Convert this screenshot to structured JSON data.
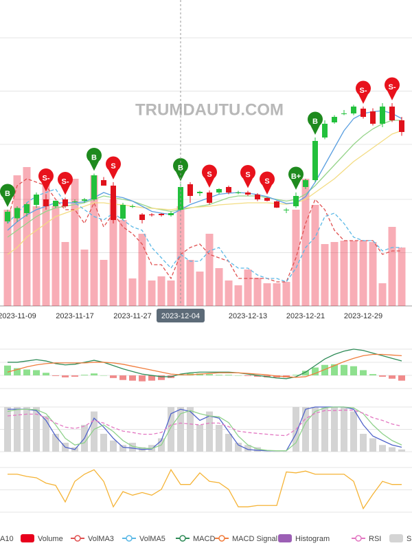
{
  "chart_data": [
    {
      "type": "candlestick",
      "watermark": "TRUMDAUTU.COM",
      "categories": [
        null,
        "2023-11-09",
        null,
        null,
        null,
        null,
        null,
        "2023-11-17",
        null,
        null,
        null,
        null,
        null,
        "2023-11-27",
        null,
        null,
        null,
        null,
        "2023-12-04",
        null,
        null,
        null,
        null,
        null,
        null,
        "2023-12-13",
        null,
        null,
        null,
        null,
        null,
        "2023-12-21",
        null,
        null,
        null,
        null,
        null,
        "2023-12-29",
        null,
        null,
        null,
        null
      ],
      "crosshair_index": 18,
      "up_color": "#22c03c",
      "down_color": "#e0121c",
      "open": [
        24.6,
        25.5,
        27,
        29.4,
        31,
        29,
        31,
        30.4,
        30.6,
        31,
        36.6,
        35,
        25.4,
        29,
        26.6,
        26.6,
        26.8,
        26.4,
        28,
        35.4,
        32.8,
        33,
        33,
        34.6,
        33,
        33,
        32.4,
        31.4,
        30.4,
        28,
        29,
        34.6,
        36.6,
        49,
        53.4,
        56,
        56,
        57.4,
        56.6,
        53,
        58,
        54
      ],
      "high": [
        28,
        29,
        30,
        33,
        32.5,
        30.5,
        31.5,
        31,
        31.4,
        38.5,
        37.5,
        36,
        30,
        29.5,
        27,
        27,
        27,
        27.5,
        35.5,
        36,
        33.5,
        33.6,
        34.2,
        35,
        33.5,
        33.5,
        32.8,
        31.6,
        30.6,
        28.5,
        33,
        37,
        49,
        54,
        55.5,
        57,
        58.5,
        58,
        57.5,
        59,
        59,
        55
      ],
      "low": [
        24,
        24.5,
        26,
        28.5,
        28,
        28.5,
        28.5,
        30,
        30,
        30.5,
        35,
        24,
        25,
        28.5,
        24,
        26,
        26,
        26,
        27.5,
        30,
        32,
        29.5,
        32.5,
        32.5,
        32.5,
        32,
        30.5,
        30.4,
        28.5,
        27,
        28.5,
        34,
        36,
        48.5,
        53,
        55.5,
        55.5,
        54.5,
        52.5,
        52,
        53.5,
        49.5
      ],
      "close": [
        27.4,
        28.5,
        29.6,
        32.4,
        29,
        30.6,
        29,
        30.4,
        31,
        38,
        35,
        25,
        29.4,
        29,
        25,
        26.4,
        26.4,
        27,
        34.6,
        32,
        33.2,
        30,
        34,
        33,
        33,
        32.4,
        31,
        30.6,
        28.6,
        28,
        32,
        36.6,
        48,
        53,
        55,
        56,
        58,
        55,
        53,
        58,
        54,
        50.6
      ],
      "signals": [
        {
          "label": "B",
          "color": "#1e8a1e"
        },
        null,
        null,
        null,
        {
          "label": "S-",
          "color": "#e8121c"
        },
        null,
        {
          "label": "S-",
          "color": "#e8121c"
        },
        null,
        null,
        {
          "label": "B",
          "color": "#1e8a1e"
        },
        null,
        {
          "label": "S",
          "color": "#e8121c"
        },
        null,
        null,
        null,
        null,
        null,
        null,
        {
          "label": "B",
          "color": "#1e8a1e"
        },
        null,
        null,
        {
          "label": "S",
          "color": "#e8121c"
        },
        null,
        null,
        null,
        {
          "label": "S",
          "color": "#e8121c"
        },
        null,
        {
          "label": "S",
          "color": "#e8121c"
        },
        null,
        null,
        {
          "label": "B+",
          "color": "#1e8a1e"
        },
        null,
        {
          "label": "B",
          "color": "#1e8a1e"
        },
        null,
        null,
        null,
        null,
        {
          "label": "S-",
          "color": "#e8121c"
        },
        null,
        null,
        {
          "label": "S-",
          "color": "#e8121c"
        },
        null
      ],
      "series": [
        {
          "name": "A10",
          "color": "#96d48a",
          "values": [
            20,
            22,
            24,
            26,
            27.5,
            28.5,
            29,
            29.5,
            30,
            31,
            32,
            31.5,
            31,
            30.5,
            29.5,
            28.5,
            28,
            27.5,
            28,
            28.5,
            29,
            29.5,
            30.5,
            31.5,
            32,
            32,
            32,
            31.5,
            31,
            30.5,
            31,
            32.5,
            35,
            38,
            41,
            44,
            47,
            49.5,
            51.5,
            53,
            54,
            54
          ]
        },
        {
          "color": "#f3dc82",
          "values": [
            15,
            17,
            20,
            22,
            24,
            26,
            27,
            28,
            29,
            30,
            30,
            29.6,
            29.4,
            29,
            28.6,
            28.4,
            28.2,
            28,
            28.4,
            28.6,
            28.8,
            29,
            29.4,
            29.6,
            29.8,
            30,
            30,
            30,
            29.8,
            29.6,
            30,
            31,
            33,
            35,
            37,
            39.5,
            42,
            44,
            46,
            48,
            50,
            51
          ]
        },
        {
          "color": "#5a9fe0",
          "values": [
            22,
            24.5,
            26.5,
            28,
            29,
            30,
            30,
            30,
            30.3,
            31.5,
            33,
            32,
            31.5,
            30.5,
            29,
            27.5,
            27,
            26.6,
            28,
            29.5,
            30.5,
            31.5,
            32.5,
            32.8,
            33,
            32.8,
            32.4,
            31.8,
            30.8,
            29.8,
            30,
            31.8,
            36,
            41,
            46,
            51,
            54.5,
            56,
            56.5,
            56.8,
            56,
            54.5
          ]
        },
        {
          "name": "Volume",
          "type": "bar",
          "axis": "y2",
          "color": "#e8001c",
          "values": [
            28,
            38,
            40.4,
            29,
            35.4,
            29,
            18.6,
            37,
            16.4,
            38,
            13.4,
            31,
            25,
            8,
            21,
            7.4,
            8.6,
            7.4,
            29,
            13.4,
            10,
            21,
            11,
            7.4,
            6,
            10.6,
            8.2,
            6.6,
            6.6,
            7,
            28,
            37,
            29.4,
            18,
            18.6,
            19,
            19,
            19,
            18.6,
            6.6,
            23,
            17
          ]
        },
        {
          "name": "VolMA3",
          "axis": "y2",
          "dashed": true,
          "color": "#e05050",
          "values": [
            25,
            35,
            37,
            36,
            35,
            31,
            28,
            28,
            24,
            30,
            23,
            27,
            23,
            21,
            18,
            12,
            12,
            8,
            15,
            17,
            18,
            15,
            14,
            13,
            8,
            8,
            8,
            8,
            7,
            7,
            14,
            24,
            31,
            28,
            22,
            19,
            19,
            19,
            19,
            15,
            16,
            16
          ]
        },
        {
          "name": "VolMA5",
          "axis": "y2",
          "dashed": true,
          "color": "#5ab8e6",
          "values": [
            24,
            27,
            30,
            32,
            33,
            34,
            30,
            30,
            28,
            26,
            25,
            27,
            25,
            23,
            22,
            17,
            14,
            11,
            15,
            13,
            13,
            16,
            17,
            13,
            11,
            11,
            9,
            8,
            8,
            7,
            11,
            17,
            20,
            26,
            27,
            24,
            20,
            19,
            19,
            16,
            17,
            17
          ]
        }
      ],
      "ylim": [
        0,
        83
      ],
      "yticks": [
        0,
        15.5,
        31,
        47,
        62.5,
        78
      ],
      "y2lim": [
        0,
        83
      ],
      "grid": true
    },
    {
      "type": "macd",
      "series": [
        {
          "name": "MACD",
          "color": "#2e8b57",
          "values": [
            2,
            2,
            2.2,
            2.4,
            2.2,
            1.8,
            1.6,
            1.7,
            2,
            2.3,
            2,
            1.5,
            1,
            0.6,
            0.2,
            0,
            -0.2,
            -0.2,
            0.2,
            0.4,
            0.5,
            0.5,
            0.5,
            0.5,
            0.4,
            0.2,
            0,
            -0.2,
            -0.4,
            -0.5,
            -0.2,
            0.5,
            1.5,
            2.5,
            3.2,
            3.7,
            4,
            3.8,
            3.4,
            3,
            2.6,
            2.2
          ]
        },
        {
          "name": "MACD Signal",
          "color": "#f07c3c",
          "values": [
            0.5,
            0.9,
            1.3,
            1.6,
            1.8,
            1.9,
            1.9,
            1.9,
            1.9,
            2,
            2,
            1.9,
            1.7,
            1.4,
            1.1,
            0.8,
            0.5,
            0.2,
            0.1,
            0.1,
            0.2,
            0.3,
            0.4,
            0.4,
            0.4,
            0.3,
            0.2,
            0.1,
            -0.1,
            -0.2,
            -0.3,
            -0.2,
            0.3,
            0.9,
            1.5,
            2.1,
            2.6,
            3,
            3.2,
            3.2,
            3.1,
            3
          ]
        },
        {
          "name": "Histogram",
          "type": "bar",
          "color": "#9c5fb5",
          "up_color": "#8ee08e",
          "down_color": "#f08a8a",
          "values": [
            1.5,
            1.1,
            0.9,
            0.8,
            0.4,
            -0.1,
            -0.3,
            -0.2,
            0.1,
            0.3,
            0,
            -0.4,
            -0.7,
            -0.8,
            -0.9,
            -0.8,
            -0.7,
            -0.4,
            0.1,
            0.3,
            0.3,
            0.2,
            0.1,
            0.1,
            0,
            -0.1,
            -0.2,
            -0.3,
            -0.3,
            -0.3,
            0.1,
            0.7,
            1.2,
            1.6,
            1.7,
            1.6,
            1.4,
            0.8,
            0.2,
            -0.2,
            -0.5,
            -0.8
          ]
        }
      ],
      "ylim": [
        -2.3,
        4.3
      ],
      "yticks": [
        -2,
        0,
        2,
        4
      ],
      "grid": true
    },
    {
      "type": "oscillator",
      "series": [
        {
          "name": "S",
          "type": "bar",
          "color": "#d4d4d4",
          "values": [
            100,
            100,
            100,
            100,
            80,
            40,
            20,
            10,
            60,
            90,
            40,
            25,
            15,
            20,
            10,
            15,
            30,
            100,
            100,
            100,
            60,
            90,
            60,
            40,
            20,
            15,
            10,
            0,
            0,
            0,
            100,
            100,
            100,
            100,
            100,
            100,
            90,
            40,
            30,
            15,
            10,
            5
          ]
        },
        {
          "color": "#4f63c9",
          "values": [
            95,
            95,
            95,
            92,
            70,
            35,
            10,
            5,
            30,
            75,
            55,
            30,
            10,
            8,
            5,
            6,
            25,
            85,
            95,
            90,
            70,
            80,
            75,
            45,
            15,
            5,
            3,
            2,
            2,
            2,
            40,
            95,
            100,
            100,
            100,
            100,
            95,
            60,
            35,
            25,
            15,
            10
          ]
        },
        {
          "color": "#8fd18b",
          "values": [
            90,
            94,
            95,
            94,
            85,
            60,
            30,
            15,
            20,
            50,
            60,
            45,
            25,
            12,
            8,
            7,
            15,
            55,
            85,
            92,
            85,
            80,
            78,
            65,
            35,
            15,
            6,
            3,
            2,
            2,
            20,
            65,
            90,
            98,
            100,
            100,
            98,
            85,
            60,
            40,
            25,
            15
          ]
        },
        {
          "name": "RSI",
          "dashed": true,
          "color": "#e377c2",
          "values": [
            80,
            82,
            84,
            84,
            76,
            64,
            55,
            52,
            57,
            70,
            64,
            54,
            46,
            43,
            39,
            39,
            43,
            60,
            64,
            62,
            60,
            64,
            64,
            56,
            46,
            43,
            41,
            39,
            37,
            36,
            50,
            74,
            86,
            92,
            92,
            93,
            93,
            86,
            76,
            70,
            62,
            57
          ]
        }
      ],
      "ylim": [
        0,
        100
      ],
      "yticks": [
        0,
        50,
        100
      ],
      "grid": true
    },
    {
      "type": "line",
      "series": [
        {
          "color": "#f5b335",
          "values": [
            85,
            85,
            80,
            77,
            65,
            60,
            23,
            69,
            85,
            95,
            69,
            12,
            46,
            38,
            44,
            38,
            51,
            95,
            62,
            62,
            88,
            69,
            66,
            51,
            12,
            12,
            15,
            15,
            15,
            90,
            88,
            92,
            85,
            85,
            85,
            85,
            69,
            8,
            40,
            69,
            62,
            62
          ]
        }
      ],
      "ylim": [
        0,
        100
      ],
      "yticks": [
        0,
        50,
        100
      ],
      "grid": true
    }
  ]
}
